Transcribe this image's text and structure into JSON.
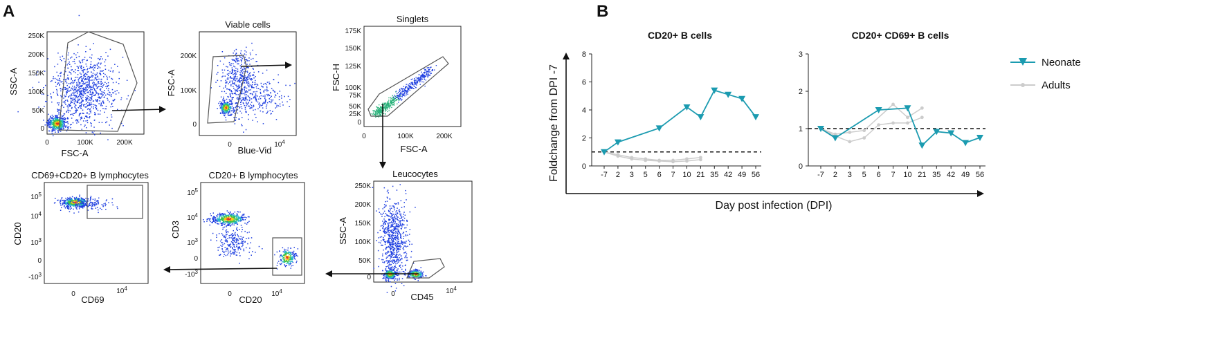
{
  "panel_labels": {
    "a": "A",
    "b": "B"
  },
  "flow_panels": [
    {
      "id": "p1",
      "title": "",
      "xlabel": "FSC-A",
      "ylabel": "SSC-A",
      "yticks": [
        "250K",
        "200K",
        "150K",
        "100K",
        "50K",
        "0"
      ],
      "xticks": [
        "0",
        "100K",
        "200K"
      ]
    },
    {
      "id": "p2",
      "title": "Viable cells",
      "xlabel": "Blue-Vid",
      "ylabel": "FSC-A",
      "yticks": [
        "200K",
        "100K",
        "0"
      ],
      "xticks": [
        "0",
        "10^4"
      ]
    },
    {
      "id": "p3",
      "title": "Singlets",
      "xlabel": "FSC-A",
      "ylabel": "FSC-H",
      "yticks": [
        "175K",
        "150K",
        "125K",
        "100K",
        "75K",
        "50K",
        "25K",
        "0"
      ],
      "xticks": [
        "0",
        "100K",
        "200K"
      ]
    },
    {
      "id": "p4",
      "title": "Leucocytes",
      "xlabel": "CD45",
      "ylabel": "SSC-A",
      "yticks": [
        "250K",
        "200K",
        "150K",
        "100K",
        "50K",
        "0"
      ],
      "xticks": [
        "0",
        "10^4"
      ]
    },
    {
      "id": "p5",
      "title": "CD20+ B lymphocytes",
      "xlabel": "CD20",
      "ylabel": "CD3",
      "yticks": [
        "10^5",
        "10^4",
        "10^3",
        "0",
        "-10^3"
      ],
      "xticks": [
        "0",
        "10^4"
      ]
    },
    {
      "id": "p6",
      "title": "CD69+CD20+ B lymphocytes",
      "xlabel": "CD69",
      "ylabel": "CD20",
      "yticks": [
        "10^5",
        "10^4",
        "10^3",
        "0",
        "-10^3"
      ],
      "xticks": [
        "0",
        "10^4"
      ]
    }
  ],
  "chart_data": [
    {
      "type": "line",
      "title": "CD20+ B cells",
      "categories": [
        "-7",
        "2",
        "3",
        "5",
        "6",
        "7",
        "10",
        "21",
        "35",
        "42",
        "49",
        "56"
      ],
      "ylim": [
        0,
        8
      ],
      "yticks": [
        "0",
        "2",
        "4",
        "6",
        "8"
      ],
      "reference_line": 1,
      "series": [
        {
          "name": "Neonate",
          "points": [
            [
              0,
              1.0
            ],
            [
              1,
              1.7
            ],
            [
              4,
              2.7
            ],
            [
              6,
              4.2
            ],
            [
              7,
              3.5
            ],
            [
              8,
              5.4
            ],
            [
              9,
              5.1
            ],
            [
              10,
              4.8
            ],
            [
              11,
              3.5
            ]
          ]
        },
        {
          "name": "Adults",
          "points": [
            [
              0,
              1.0
            ],
            [
              1,
              0.8
            ],
            [
              2,
              0.6
            ],
            [
              3,
              0.5
            ],
            [
              4,
              0.4
            ],
            [
              5,
              0.4
            ],
            [
              6,
              0.5
            ],
            [
              7,
              0.6
            ]
          ]
        },
        {
          "name": "Adults",
          "points": [
            [
              0,
              1.0
            ],
            [
              1,
              0.7
            ],
            [
              2,
              0.5
            ],
            [
              3,
              0.4
            ],
            [
              4,
              0.35
            ],
            [
              5,
              0.3
            ],
            [
              6,
              0.35
            ],
            [
              7,
              0.45
            ]
          ]
        }
      ]
    },
    {
      "type": "line",
      "title": "CD20+ CD69+ B cells",
      "categories": [
        "-7",
        "2",
        "3",
        "5",
        "6",
        "7",
        "10",
        "21",
        "35",
        "42",
        "49",
        "56"
      ],
      "ylim": [
        0,
        3
      ],
      "yticks": [
        "0",
        "1",
        "2",
        "3"
      ],
      "reference_line": 1,
      "series": [
        {
          "name": "Neonate",
          "points": [
            [
              0,
              1.0
            ],
            [
              1,
              0.75
            ],
            [
              4,
              1.5
            ],
            [
              6,
              1.55
            ],
            [
              7,
              0.55
            ],
            [
              8,
              0.92
            ],
            [
              9,
              0.88
            ],
            [
              10,
              0.62
            ],
            [
              11,
              0.76
            ]
          ]
        },
        {
          "name": "Adults",
          "points": [
            [
              0,
              1.0
            ],
            [
              1,
              0.85
            ],
            [
              2,
              0.9
            ],
            [
              3,
              0.95
            ],
            [
              5,
              1.65
            ],
            [
              6,
              1.3
            ],
            [
              7,
              1.55
            ]
          ]
        },
        {
          "name": "Adults",
          "points": [
            [
              0,
              1.0
            ],
            [
              1,
              0.8
            ],
            [
              2,
              0.65
            ],
            [
              3,
              0.75
            ],
            [
              4,
              1.1
            ],
            [
              5,
              1.15
            ],
            [
              6,
              1.15
            ],
            [
              7,
              1.3
            ]
          ]
        }
      ]
    }
  ],
  "shared": {
    "xlabel": "Day post infection (DPI)",
    "ylabel": "Foldchange from DPI -7"
  },
  "legend": [
    {
      "label": "Neonate"
    },
    {
      "label": "Adults"
    }
  ],
  "colors": {
    "neonate": "#1b9bb0",
    "adults": "#cccccc"
  }
}
